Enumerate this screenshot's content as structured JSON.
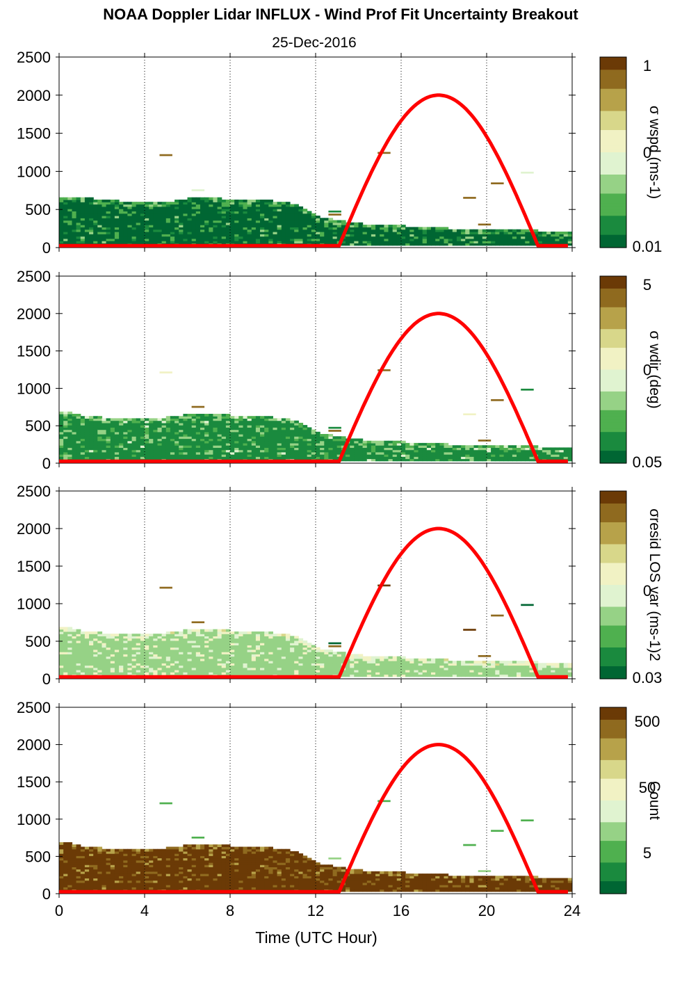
{
  "figure": {
    "title": "NOAA Doppler Lidar INFLUX - Wind Prof Fit Uncertainty Breakout",
    "date": "25-Dec-2016",
    "xlabel": "Time (UTC Hour)"
  },
  "colors": {
    "sun_curve": "#ff0000",
    "colormap": [
      "#006633",
      "#1a8a3e",
      "#4fb04f",
      "#96d286",
      "#e0f3d0",
      "#f1f2c4",
      "#d8d78a",
      "#b7a24a",
      "#8f6a1f",
      "#6b3a06"
    ]
  },
  "chart_data": [
    {
      "type": "heatmap",
      "panel": "wspd",
      "cbar_label": "σ wspd (ms-1)",
      "cbar_ticks": [
        "1",
        "0",
        "0.01"
      ],
      "x": {
        "range": [
          0,
          24
        ],
        "ticks": [
          0,
          4,
          8,
          12,
          16,
          20,
          24
        ],
        "grid": "dotted vertical"
      },
      "y": {
        "range": [
          0,
          2500
        ],
        "ticks": [
          0,
          500,
          1000,
          1500,
          2000,
          2500
        ]
      },
      "profile_top_m": [
        640,
        640,
        620,
        590,
        590,
        580,
        640,
        640,
        620,
        610,
        600,
        560,
        400,
        340,
        300,
        280,
        270,
        260,
        240,
        230,
        230,
        220,
        220,
        190
      ],
      "dominant_level": 0.05,
      "speckle_level": 0.2,
      "outliers": [
        {
          "t": 5.0,
          "h": 1200,
          "level": 0.85
        },
        {
          "t": 6.5,
          "h": 740,
          "level": 0.45
        },
        {
          "t": 15.2,
          "h": 1230,
          "level": 0.9
        },
        {
          "t": 19.2,
          "h": 640,
          "level": 0.85
        },
        {
          "t": 20.5,
          "h": 830,
          "level": 0.85
        },
        {
          "t": 21.9,
          "h": 970,
          "level": 0.4
        },
        {
          "t": 12.9,
          "h": 460,
          "level": 0.15
        },
        {
          "t": 12.9,
          "h": 420,
          "level": 0.9
        },
        {
          "t": 19.9,
          "h": 290,
          "level": 0.85
        }
      ],
      "sun_curve": {
        "t_start": 13.1,
        "t_peak": 17.7,
        "t_end": 22.4,
        "peak_m": 2000,
        "baseline_m": 25
      }
    },
    {
      "type": "heatmap",
      "panel": "wdir",
      "cbar_label": "σ wdir (deg)",
      "cbar_ticks": [
        "5",
        "0",
        "0.05"
      ],
      "x": {
        "range": [
          0,
          24
        ],
        "ticks": [
          0,
          4,
          8,
          12,
          16,
          20,
          24
        ],
        "grid": "dotted vertical"
      },
      "y": {
        "range": [
          0,
          2500
        ],
        "ticks": [
          0,
          500,
          1000,
          1500,
          2000,
          2500
        ]
      },
      "profile_top_m": [
        690,
        620,
        600,
        590,
        590,
        600,
        640,
        640,
        630,
        620,
        600,
        560,
        400,
        340,
        300,
        280,
        270,
        260,
        240,
        230,
        230,
        220,
        220,
        190
      ],
      "dominant_level": 0.1,
      "speckle_level": 0.3,
      "outliers": [
        {
          "t": 5.0,
          "h": 1200,
          "level": 0.55
        },
        {
          "t": 6.5,
          "h": 740,
          "level": 0.85
        },
        {
          "t": 15.2,
          "h": 1230,
          "level": 0.85
        },
        {
          "t": 19.2,
          "h": 640,
          "level": 0.55
        },
        {
          "t": 20.5,
          "h": 830,
          "level": 0.85
        },
        {
          "t": 21.9,
          "h": 970,
          "level": 0.1
        },
        {
          "t": 12.9,
          "h": 460,
          "level": 0.15
        },
        {
          "t": 12.9,
          "h": 420,
          "level": 0.9
        },
        {
          "t": 19.9,
          "h": 290,
          "level": 0.85
        }
      ],
      "sun_curve": {
        "t_start": 13.1,
        "t_peak": 17.7,
        "t_end": 22.4,
        "peak_m": 2000,
        "baseline_m": 25
      }
    },
    {
      "type": "heatmap",
      "panel": "resid",
      "cbar_label": "σresid LOS var (ms-1)2",
      "cbar_ticks": [
        "0",
        "0.03"
      ],
      "x": {
        "range": [
          0,
          24
        ],
        "ticks": [
          0,
          4,
          8,
          12,
          16,
          20,
          24
        ],
        "grid": "dotted vertical"
      },
      "y": {
        "range": [
          0,
          2500
        ],
        "ticks": [
          0,
          500,
          1000,
          1500,
          2000,
          2500
        ]
      },
      "profile_top_m": [
        690,
        620,
        600,
        590,
        600,
        600,
        640,
        640,
        630,
        620,
        600,
        560,
        400,
        340,
        300,
        280,
        270,
        260,
        240,
        230,
        230,
        220,
        220,
        190
      ],
      "dominant_level": 0.3,
      "speckle_level": 0.5,
      "outliers": [
        {
          "t": 5.0,
          "h": 1200,
          "level": 0.85
        },
        {
          "t": 6.5,
          "h": 740,
          "level": 0.85
        },
        {
          "t": 15.2,
          "h": 1230,
          "level": 0.95
        },
        {
          "t": 19.2,
          "h": 640,
          "level": 0.95
        },
        {
          "t": 20.5,
          "h": 830,
          "level": 0.9
        },
        {
          "t": 21.9,
          "h": 970,
          "level": 0.05
        },
        {
          "t": 12.9,
          "h": 460,
          "level": 0.05
        },
        {
          "t": 12.9,
          "h": 420,
          "level": 0.9
        },
        {
          "t": 19.9,
          "h": 290,
          "level": 0.85
        }
      ],
      "sun_curve": {
        "t_start": 13.1,
        "t_peak": 17.7,
        "t_end": 22.4,
        "peak_m": 2000,
        "baseline_m": 25
      }
    },
    {
      "type": "heatmap",
      "panel": "count",
      "cbar_label": "Count",
      "cbar_ticks": [
        "500",
        "50",
        "5"
      ],
      "x": {
        "range": [
          0,
          24
        ],
        "ticks": [
          0,
          4,
          8,
          12,
          16,
          20,
          24
        ],
        "grid": "dotted vertical"
      },
      "y": {
        "range": [
          0,
          2500
        ],
        "ticks": [
          0,
          500,
          1000,
          1500,
          2000,
          2500
        ]
      },
      "profile_top_m": [
        690,
        620,
        600,
        590,
        600,
        600,
        640,
        640,
        630,
        620,
        600,
        560,
        400,
        340,
        300,
        280,
        270,
        260,
        240,
        230,
        230,
        220,
        220,
        190
      ],
      "dominant_level": 0.97,
      "speckle_level": 0.9,
      "outliers": [
        {
          "t": 5.0,
          "h": 1200,
          "level": 0.2
        },
        {
          "t": 6.5,
          "h": 740,
          "level": 0.2
        },
        {
          "t": 15.2,
          "h": 1230,
          "level": 0.25
        },
        {
          "t": 19.2,
          "h": 640,
          "level": 0.25
        },
        {
          "t": 20.5,
          "h": 830,
          "level": 0.25
        },
        {
          "t": 21.9,
          "h": 970,
          "level": 0.25
        },
        {
          "t": 12.9,
          "h": 460,
          "level": 0.3
        },
        {
          "t": 19.9,
          "h": 290,
          "level": 0.3
        }
      ],
      "sun_curve": {
        "t_start": 13.1,
        "t_peak": 17.7,
        "t_end": 22.4,
        "peak_m": 2000,
        "baseline_m": 25
      }
    }
  ]
}
